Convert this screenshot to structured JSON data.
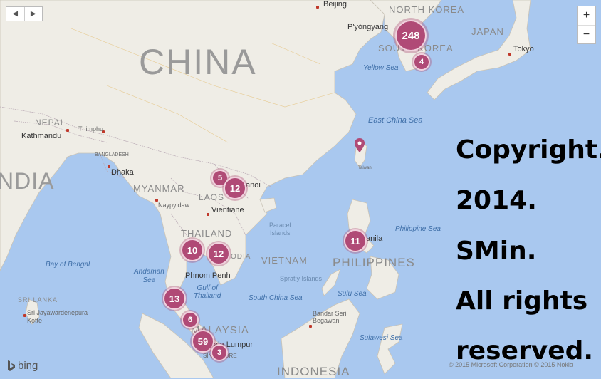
{
  "map": {
    "countries": {
      "china": "CHINA",
      "india": "NDIA",
      "north_korea": "NORTH KOREA",
      "south_korea": "SOUTH KOREA",
      "japan": "JAPAN",
      "nepal": "NEPAL",
      "myanmar": "MYANMAR",
      "laos": "LAOS",
      "thailand": "THAILAND",
      "vietnam": "VIETNAM",
      "cambodia": "ODIA",
      "philippines": "PHILIPPINES",
      "malaysia": "MALAYSIA",
      "indonesia": "INDONESIA",
      "sri_lanka": "SRI LANKA",
      "bangladesh": "BANGLADESH"
    },
    "cities": {
      "beijing": "Beijing",
      "pyongyang": "P'yŏngyang",
      "tokyo": "Tokyo",
      "thimphu": "Thimphu",
      "kathmandu": "Kathmandu",
      "dhaka": "Dhaka",
      "naypyidaw": "Naypyidaw",
      "vientiane": "Vientiane",
      "hanoi": "anoi",
      "phnom_penh": "Phnom Penh",
      "manila": "anila",
      "bandar_seri_begawan": "Bandar Seri\nBegawan",
      "sri_jayawardenepura": "Sri Jayawardenepura\nKotte",
      "kuala_lumpur": "ala Lumpur",
      "taiwan": "Taiwan",
      "singapore": "SINGAPORE"
    },
    "seas": {
      "yellow_sea": "Yellow Sea",
      "east_china_sea": "East China Sea",
      "philippine_sea": "Philippine Sea",
      "bay_of_bengal": "Bay of Bengal",
      "andaman_sea": "Andaman\nSea",
      "gulf_of_thailand": "Gulf of\nThailand",
      "south_china_sea": "South China Sea",
      "sulu_sea": "Sulu Sea",
      "sulawesi_sea": "Sulawesi Sea"
    },
    "islands": {
      "paracel": "Paracel\nIslands",
      "spratly": "Spratly Islands"
    }
  },
  "clusters": [
    {
      "id": "korea-main",
      "count": "248"
    },
    {
      "id": "korea-south",
      "count": "4"
    },
    {
      "id": "laos-north",
      "count": "5"
    },
    {
      "id": "hanoi",
      "count": "12"
    },
    {
      "id": "thailand",
      "count": "10"
    },
    {
      "id": "cambodia",
      "count": "12"
    },
    {
      "id": "manila",
      "count": "11"
    },
    {
      "id": "malaysia-north",
      "count": "13"
    },
    {
      "id": "malaysia-mid",
      "count": "6"
    },
    {
      "id": "kuala-lumpur",
      "count": "59"
    },
    {
      "id": "singapore",
      "count": "3"
    }
  ],
  "overlay_text": [
    "Copyright.",
    "2014.",
    "SMin.",
    "All rights",
    "reserved."
  ],
  "controls": {
    "prev": "◀",
    "next": "▶",
    "zoom_in": "+",
    "zoom_out": "−"
  },
  "branding": {
    "bing": "bing",
    "attribution": "© 2015 Microsoft Corporation   © 2015 Nokia"
  },
  "colors": {
    "water": "#a9c8ef",
    "land": "#efede6",
    "cluster": "#b04a76",
    "pin": "#b04a76"
  }
}
